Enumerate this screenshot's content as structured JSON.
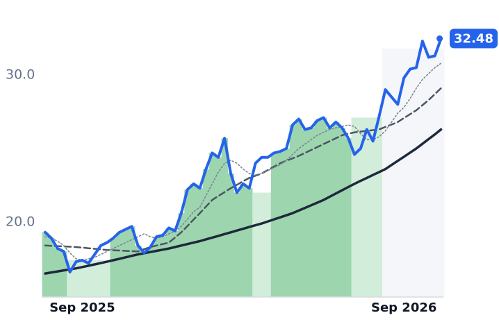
{
  "chart_data": {
    "type": "line",
    "categories": [
      null,
      null,
      null,
      null,
      null,
      null,
      "Sep 2025",
      null,
      null,
      null,
      null,
      null,
      null,
      null,
      null,
      null,
      null,
      null,
      null,
      null,
      null,
      null,
      null,
      null,
      null,
      null,
      null,
      null,
      null,
      null,
      null,
      null,
      null,
      null,
      null,
      null,
      null,
      null,
      null,
      null,
      null,
      null,
      null,
      null,
      null,
      null,
      null,
      null,
      null,
      null,
      null,
      null,
      null,
      null,
      null,
      null,
      null,
      null,
      "Sep 2026",
      null,
      null,
      null,
      null,
      null,
      null
    ],
    "ylim": [
      14.9,
      35.1
    ],
    "yticks": [
      {
        "value": 20,
        "label": "20.0"
      },
      {
        "value": 30,
        "label": "30.0"
      }
    ],
    "zones": {
      "values": [
        19.3,
        18.9,
        18.2,
        18.0,
        17.4,
        17.4,
        17.4,
        17.4,
        17.4,
        17.4,
        17.4,
        18.9,
        19.3,
        19.5,
        19.7,
        18.4,
        17.9,
        18.3,
        19.0,
        19.1,
        19.6,
        19.4,
        20.6,
        22.2,
        22.6,
        22.3,
        23.6,
        24.7,
        24.4,
        25.7,
        23.3,
        22.0,
        22.6,
        22.3,
        22.0,
        22.0,
        22.0,
        24.7,
        24.8,
        25.0,
        26.6,
        27.0,
        26.3,
        26.4,
        26.9,
        27.1,
        26.4,
        26.8,
        26.4,
        25.7,
        27.1,
        27.1,
        27.1,
        27.1,
        27.1,
        31.8,
        31.8,
        31.8,
        31.8,
        31.8,
        31.8,
        31.8,
        31.8,
        31.8,
        31.8
      ],
      "colors": [
        "#9dd5ae",
        "#9dd5ae",
        "#9dd5ae",
        "#9dd5ae",
        "#d2edda",
        "#d2edda",
        "#d2edda",
        "#d2edda",
        "#d2edda",
        "#d2edda",
        "#d2edda",
        "#9dd5ae",
        "#9dd5ae",
        "#9dd5ae",
        "#9dd5ae",
        "#9dd5ae",
        "#9dd5ae",
        "#9dd5ae",
        "#9dd5ae",
        "#9dd5ae",
        "#9dd5ae",
        "#9dd5ae",
        "#9dd5ae",
        "#9dd5ae",
        "#9dd5ae",
        "#9dd5ae",
        "#9dd5ae",
        "#9dd5ae",
        "#9dd5ae",
        "#9dd5ae",
        "#9dd5ae",
        "#9dd5ae",
        "#9dd5ae",
        "#9dd5ae",
        "#d2edda",
        "#d2edda",
        "#d2edda",
        "#9dd5ae",
        "#9dd5ae",
        "#9dd5ae",
        "#9dd5ae",
        "#9dd5ae",
        "#9dd5ae",
        "#9dd5ae",
        "#9dd5ae",
        "#9dd5ae",
        "#9dd5ae",
        "#9dd5ae",
        "#9dd5ae",
        "#9dd5ae",
        "#d2edda",
        "#d2edda",
        "#d2edda",
        "#d2edda",
        "#d2edda",
        "#f5f6f9",
        "#f5f6f9",
        "#f5f6f9",
        "#f5f6f9",
        "#f5f6f9",
        "#f5f6f9",
        "#f5f6f9",
        "#f5f6f9",
        "#f5f6f9",
        "#f5f6f9"
      ]
    },
    "lines": [
      {
        "color": "#2563eb",
        "width": 4,
        "dash": "none",
        "values": [
          19.3,
          18.9,
          18.2,
          18.0,
          16.6,
          17.3,
          17.4,
          17.2,
          17.8,
          18.4,
          18.6,
          18.9,
          19.3,
          19.5,
          19.7,
          18.4,
          17.9,
          18.3,
          19.0,
          19.1,
          19.6,
          19.4,
          20.6,
          22.2,
          22.6,
          22.3,
          23.6,
          24.7,
          24.4,
          25.7,
          23.3,
          22.0,
          22.6,
          22.3,
          24.0,
          24.4,
          24.4,
          24.7,
          24.8,
          25.0,
          26.6,
          27.0,
          26.3,
          26.4,
          26.9,
          27.1,
          26.4,
          26.8,
          26.4,
          25.7,
          24.6,
          25.0,
          26.3,
          25.5,
          27.2,
          29.0,
          28.5,
          28.0,
          29.8,
          30.4,
          30.5,
          32.3,
          31.2,
          31.3,
          32.48
        ]
      },
      {
        "color": "#1e293b",
        "width": 3.5,
        "dash": "none",
        "values": [
          16.5,
          16.57,
          16.64,
          16.71,
          16.78,
          16.85,
          16.94,
          17.03,
          17.12,
          17.21,
          17.3,
          17.4,
          17.5,
          17.6,
          17.7,
          17.8,
          17.88,
          17.96,
          18.04,
          18.12,
          18.2,
          18.3,
          18.4,
          18.5,
          18.6,
          18.7,
          18.82,
          18.94,
          19.06,
          19.18,
          19.3,
          19.42,
          19.54,
          19.66,
          19.78,
          19.9,
          20.04,
          20.18,
          20.32,
          20.46,
          20.6,
          20.78,
          20.96,
          21.14,
          21.32,
          21.5,
          21.72,
          21.94,
          22.16,
          22.38,
          22.6,
          22.8,
          23.0,
          23.2,
          23.4,
          23.6,
          23.88,
          24.16,
          24.44,
          24.72,
          25.0,
          25.32,
          25.64,
          25.96,
          26.3
        ]
      },
      {
        "color": "#4b5563",
        "width": 2.5,
        "dash": "9 5",
        "values": [
          18.4,
          18.38,
          18.36,
          18.34,
          18.32,
          18.3,
          18.26,
          18.22,
          18.18,
          18.14,
          18.1,
          18.08,
          18.06,
          18.04,
          18.02,
          18.0,
          18.15,
          18.3,
          18.4,
          18.5,
          18.6,
          18.95,
          19.3,
          19.73,
          20.17,
          20.6,
          21.05,
          21.5,
          21.77,
          22.03,
          22.3,
          22.53,
          22.77,
          23.0,
          23.15,
          23.3,
          23.53,
          23.77,
          24.0,
          24.17,
          24.33,
          24.5,
          24.7,
          24.9,
          25.1,
          25.3,
          25.5,
          25.7,
          25.9,
          26.0,
          26.1,
          26.15,
          26.2,
          26.25,
          26.3,
          26.47,
          26.63,
          26.8,
          27.07,
          27.33,
          27.6,
          27.95,
          28.3,
          28.7,
          29.1
        ]
      },
      {
        "color": "#7c8595",
        "width": 1.6,
        "dash": "2 3",
        "values": [
          19.0,
          18.9,
          18.7,
          18.4,
          17.9,
          17.5,
          17.4,
          17.5,
          17.6,
          17.8,
          18.0,
          18.2,
          18.4,
          18.6,
          18.8,
          19.0,
          19.2,
          19.0,
          18.9,
          19.0,
          19.2,
          19.4,
          19.7,
          20.2,
          20.7,
          21.0,
          21.8,
          22.6,
          23.4,
          24.0,
          24.2,
          24.0,
          23.6,
          23.3,
          23.2,
          23.3,
          23.5,
          23.7,
          23.9,
          24.2,
          24.6,
          25.0,
          25.3,
          25.6,
          25.9,
          26.1,
          26.3,
          26.4,
          26.5,
          26.6,
          26.5,
          26.0,
          25.6,
          25.6,
          25.8,
          26.2,
          26.8,
          27.4,
          27.8,
          28.4,
          29.1,
          29.7,
          30.1,
          30.5,
          30.8
        ]
      }
    ]
  }
}
